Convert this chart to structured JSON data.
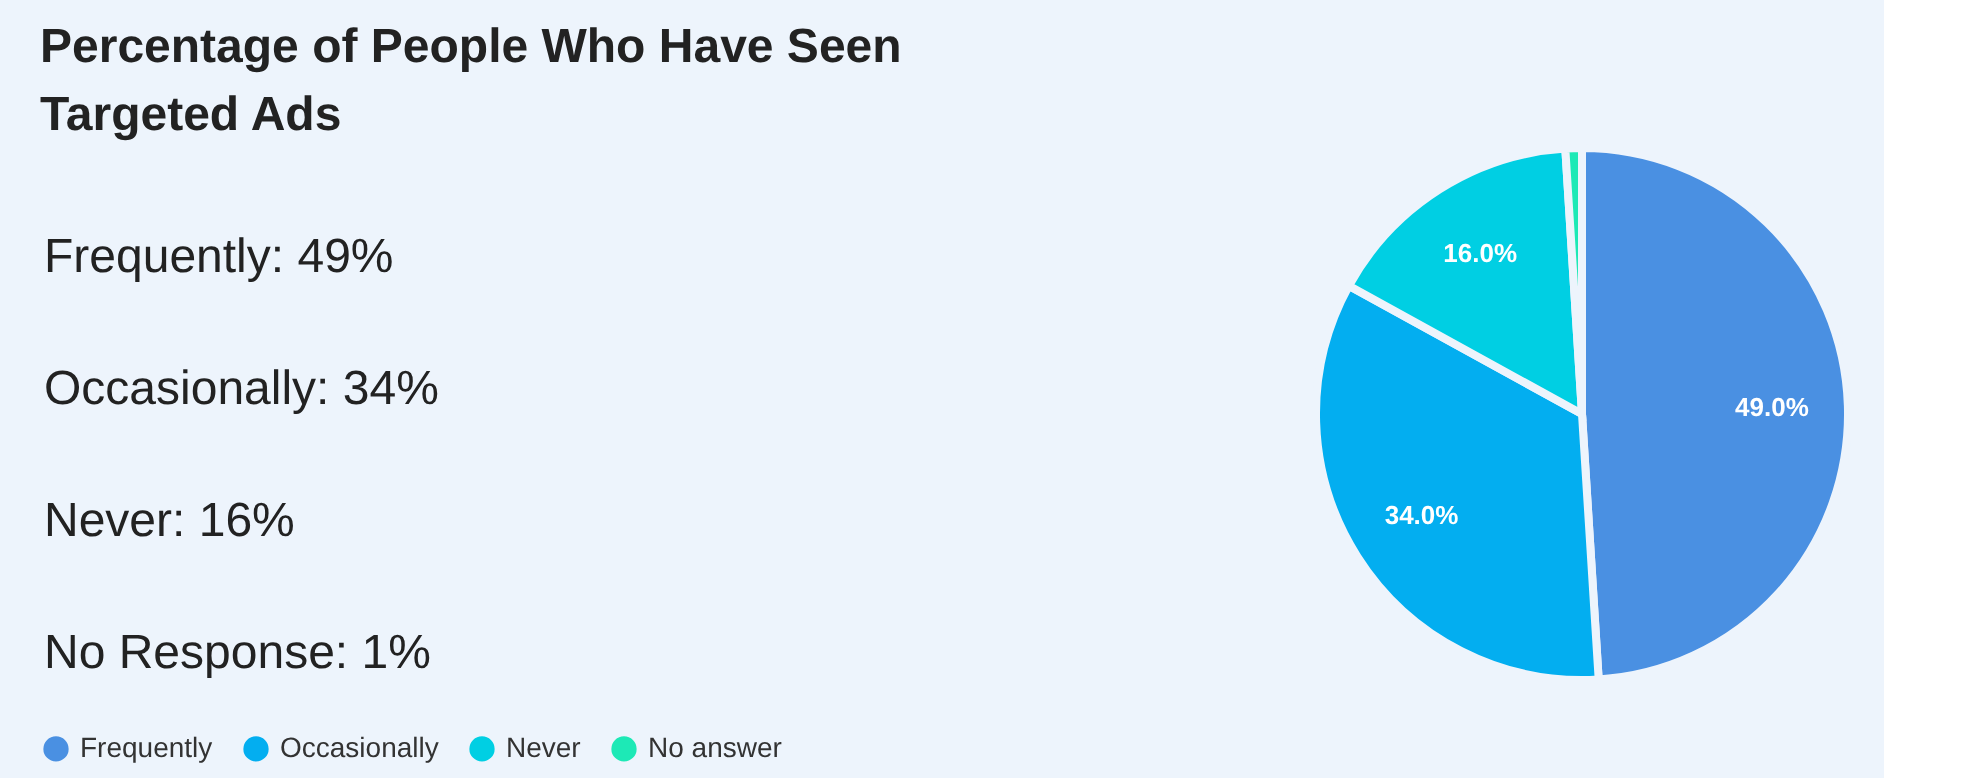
{
  "chart_data": [
    {
      "type": "other",
      "title": "Percentage of People Who Have Seen Targeted Ads",
      "annotations": [
        "Frequently: 49%",
        "Occasionally: 34%",
        "Never: 16%",
        "No Response: 1%"
      ]
    },
    {
      "type": "pie",
      "categories": [
        "Frequently",
        "Occasionally",
        "Never",
        "No answer"
      ],
      "values": [
        49,
        34,
        16,
        1
      ],
      "colors": [
        "#4a90e2",
        "#03aef0",
        "#00cfe3",
        "#1de9b6"
      ],
      "value_labels": [
        "49.0%",
        "34.0%",
        "16.0%",
        null
      ],
      "legend": "bottom"
    }
  ]
}
